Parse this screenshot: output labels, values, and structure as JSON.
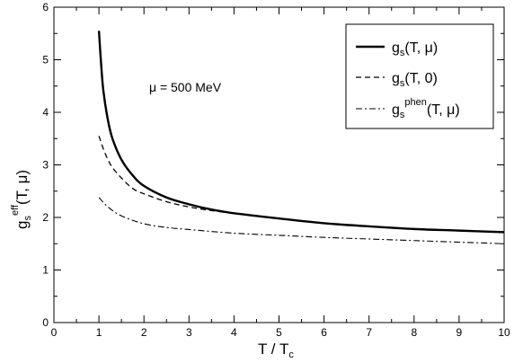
{
  "chart_data": {
    "type": "line",
    "xlabel": {
      "main": "T / T",
      "sub": "c"
    },
    "ylabel": {
      "base": "g",
      "sub": "s",
      "sup": "eff",
      "rest": "(T, μ)"
    },
    "xlim": [
      0,
      10
    ],
    "ylim": [
      0,
      6
    ],
    "xticks": [
      0,
      1,
      2,
      3,
      4,
      5,
      6,
      7,
      8,
      9,
      10
    ],
    "yticks": [
      0,
      1,
      2,
      3,
      4,
      5,
      6
    ],
    "grid": false,
    "legend_position": "top-right",
    "annotation": "μ = 500 MeV",
    "series": [
      {
        "name": {
          "base": "g",
          "sub": "s",
          "sup": "",
          "rest": "(T, μ)"
        },
        "style": "solid",
        "x": [
          1.0,
          1.05,
          1.1,
          1.2,
          1.3,
          1.5,
          1.75,
          2.0,
          2.5,
          3.0,
          3.5,
          4.0,
          5.0,
          6.0,
          7.0,
          8.0,
          9.0,
          10.0
        ],
        "y": [
          5.55,
          4.9,
          4.4,
          3.85,
          3.5,
          3.1,
          2.8,
          2.6,
          2.38,
          2.25,
          2.15,
          2.08,
          1.98,
          1.89,
          1.83,
          1.78,
          1.75,
          1.72
        ]
      },
      {
        "name": {
          "base": "g",
          "sub": "s",
          "sup": "",
          "rest": "(T, 0)"
        },
        "style": "dashed",
        "x": [
          1.0,
          1.1,
          1.2,
          1.3,
          1.5,
          1.75,
          2.0,
          2.5,
          3.0,
          3.5,
          4.0
        ],
        "y": [
          3.55,
          3.3,
          3.1,
          2.95,
          2.75,
          2.55,
          2.45,
          2.3,
          2.2,
          2.13,
          2.08
        ]
      },
      {
        "name": {
          "base": "g",
          "sub": "s",
          "sup": "phen",
          "rest": "(T, μ)"
        },
        "style": "dashdot",
        "x": [
          1.0,
          1.2,
          1.5,
          2.0,
          2.5,
          3.0,
          4.0,
          5.0,
          6.0,
          7.0,
          8.0,
          9.0,
          10.0
        ],
        "y": [
          2.38,
          2.2,
          2.03,
          1.88,
          1.81,
          1.77,
          1.7,
          1.66,
          1.62,
          1.59,
          1.56,
          1.53,
          1.5
        ]
      }
    ]
  }
}
